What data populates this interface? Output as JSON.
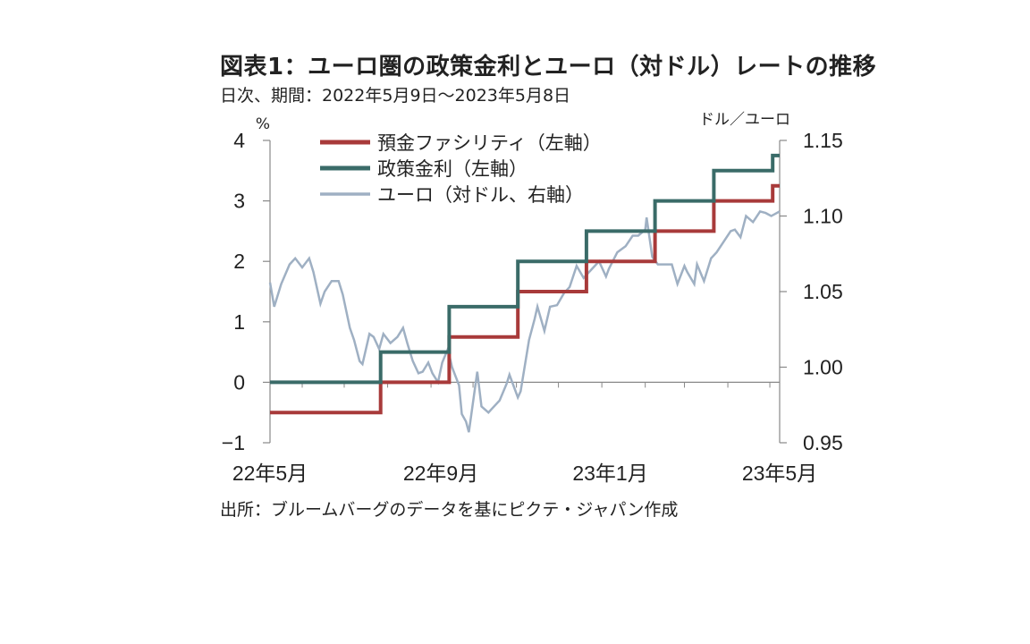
{
  "title": "図表1：ユーロ圏の政策金利とユーロ（対ドル）レートの推移",
  "subtitle": "日次、期間：2022年5月9日～2023年5月8日",
  "source": "出所：ブルームバーグのデータを基にピクテ・ジャパン作成",
  "chart_data": {
    "type": "line",
    "title": "図表1：ユーロ圏の政策金利とユーロ（対ドル）レートの推移",
    "subtitle": "日次、期間：2022年5月9日～2023年5月8日",
    "left_axis": {
      "unit": "%",
      "ylim": [
        -1,
        4
      ],
      "ticks": [
        "4",
        "3",
        "2",
        "1",
        "0",
        "−1"
      ]
    },
    "right_axis": {
      "unit": "ドル／ユーロ",
      "ylim": [
        0.95,
        1.15
      ],
      "ticks": [
        "1.15",
        "1.10",
        "1.05",
        "1.00",
        "0.95"
      ]
    },
    "x_axis": {
      "range": [
        "2022-05-09",
        "2023-05-08"
      ],
      "ticks": [
        "22年5月",
        "22年9月",
        "23年1月",
        "23年5月"
      ]
    },
    "grid": false,
    "legend_position": "top",
    "series": [
      {
        "name": "預金ファシリティ（左軸）",
        "axis": "left",
        "color": "#a83a3a",
        "step": true,
        "points": [
          [
            "2022-05-09",
            -0.5
          ],
          [
            "2022-07-27",
            0.0
          ],
          [
            "2022-09-14",
            0.75
          ],
          [
            "2022-11-02",
            1.5
          ],
          [
            "2022-12-21",
            2.0
          ],
          [
            "2023-02-08",
            2.5
          ],
          [
            "2023-03-22",
            3.0
          ],
          [
            "2023-05-03",
            3.25
          ],
          [
            "2023-05-08",
            3.25
          ]
        ]
      },
      {
        "name": "政策金利（左軸）",
        "axis": "left",
        "color": "#3a6b68",
        "step": true,
        "points": [
          [
            "2022-05-09",
            0.0
          ],
          [
            "2022-07-27",
            0.5
          ],
          [
            "2022-09-14",
            1.25
          ],
          [
            "2022-11-02",
            2.0
          ],
          [
            "2022-12-21",
            2.5
          ],
          [
            "2023-02-08",
            3.0
          ],
          [
            "2023-03-22",
            3.5
          ],
          [
            "2023-05-03",
            3.75
          ],
          [
            "2023-05-08",
            3.75
          ]
        ]
      },
      {
        "name": "ユーロ（対ドル、右軸）",
        "axis": "right",
        "color": "#9fb0c3",
        "step": false,
        "points": [
          [
            "2022-05-09",
            1.056
          ],
          [
            "2022-05-12",
            1.04
          ],
          [
            "2022-05-17",
            1.055
          ],
          [
            "2022-05-23",
            1.068
          ],
          [
            "2022-05-27",
            1.072
          ],
          [
            "2022-06-01",
            1.066
          ],
          [
            "2022-06-06",
            1.072
          ],
          [
            "2022-06-09",
            1.063
          ],
          [
            "2022-06-14",
            1.042
          ],
          [
            "2022-06-17",
            1.05
          ],
          [
            "2022-06-22",
            1.057
          ],
          [
            "2022-06-27",
            1.057
          ],
          [
            "2022-06-30",
            1.048
          ],
          [
            "2022-07-05",
            1.026
          ],
          [
            "2022-07-08",
            1.018
          ],
          [
            "2022-07-12",
            1.004
          ],
          [
            "2022-07-14",
            1.002
          ],
          [
            "2022-07-19",
            1.022
          ],
          [
            "2022-07-22",
            1.02
          ],
          [
            "2022-07-26",
            1.012
          ],
          [
            "2022-07-29",
            1.022
          ],
          [
            "2022-08-03",
            1.016
          ],
          [
            "2022-08-08",
            1.02
          ],
          [
            "2022-08-12",
            1.026
          ],
          [
            "2022-08-15",
            1.016
          ],
          [
            "2022-08-19",
            1.004
          ],
          [
            "2022-08-23",
            0.996
          ],
          [
            "2022-08-26",
            0.997
          ],
          [
            "2022-08-30",
            1.003
          ],
          [
            "2022-09-02",
            0.996
          ],
          [
            "2022-09-06",
            0.99
          ],
          [
            "2022-09-09",
            1.003
          ],
          [
            "2022-09-13",
            1.012
          ],
          [
            "2022-09-16",
            1.0
          ],
          [
            "2022-09-21",
            0.988
          ],
          [
            "2022-09-23",
            0.969
          ],
          [
            "2022-09-26",
            0.964
          ],
          [
            "2022-09-28",
            0.957
          ],
          [
            "2022-10-04",
            0.997
          ],
          [
            "2022-10-07",
            0.974
          ],
          [
            "2022-10-12",
            0.97
          ],
          [
            "2022-10-14",
            0.972
          ],
          [
            "2022-10-20",
            0.978
          ],
          [
            "2022-10-25",
            0.989
          ],
          [
            "2022-10-27",
            0.995
          ],
          [
            "2022-11-02",
            0.98
          ],
          [
            "2022-11-04",
            0.984
          ],
          [
            "2022-11-10",
            1.018
          ],
          [
            "2022-11-14",
            1.032
          ],
          [
            "2022-11-16",
            1.04
          ],
          [
            "2022-11-21",
            1.024
          ],
          [
            "2022-11-25",
            1.04
          ],
          [
            "2022-11-30",
            1.041
          ],
          [
            "2022-12-05",
            1.049
          ],
          [
            "2022-12-09",
            1.053
          ],
          [
            "2022-12-14",
            1.067
          ],
          [
            "2022-12-19",
            1.059
          ],
          [
            "2022-12-23",
            1.063
          ],
          [
            "2022-12-30",
            1.07
          ],
          [
            "2023-01-04",
            1.06
          ],
          [
            "2023-01-06",
            1.065
          ],
          [
            "2023-01-12",
            1.076
          ],
          [
            "2023-01-18",
            1.08
          ],
          [
            "2023-01-23",
            1.087
          ],
          [
            "2023-01-27",
            1.087
          ],
          [
            "2023-02-01",
            1.091
          ],
          [
            "2023-02-02",
            1.099
          ],
          [
            "2023-02-06",
            1.073
          ],
          [
            "2023-02-10",
            1.068
          ],
          [
            "2023-02-15",
            1.068
          ],
          [
            "2023-02-20",
            1.068
          ],
          [
            "2023-02-24",
            1.055
          ],
          [
            "2023-03-01",
            1.067
          ],
          [
            "2023-03-03",
            1.063
          ],
          [
            "2023-03-08",
            1.055
          ],
          [
            "2023-03-10",
            1.068
          ],
          [
            "2023-03-15",
            1.057
          ],
          [
            "2023-03-20",
            1.072
          ],
          [
            "2023-03-24",
            1.076
          ],
          [
            "2023-03-29",
            1.083
          ],
          [
            "2023-04-03",
            1.09
          ],
          [
            "2023-04-06",
            1.091
          ],
          [
            "2023-04-10",
            1.086
          ],
          [
            "2023-04-14",
            1.1
          ],
          [
            "2023-04-19",
            1.096
          ],
          [
            "2023-04-24",
            1.103
          ],
          [
            "2023-04-28",
            1.102
          ],
          [
            "2023-05-02",
            1.1
          ],
          [
            "2023-05-04",
            1.101
          ],
          [
            "2023-05-08",
            1.103
          ]
        ]
      }
    ]
  }
}
